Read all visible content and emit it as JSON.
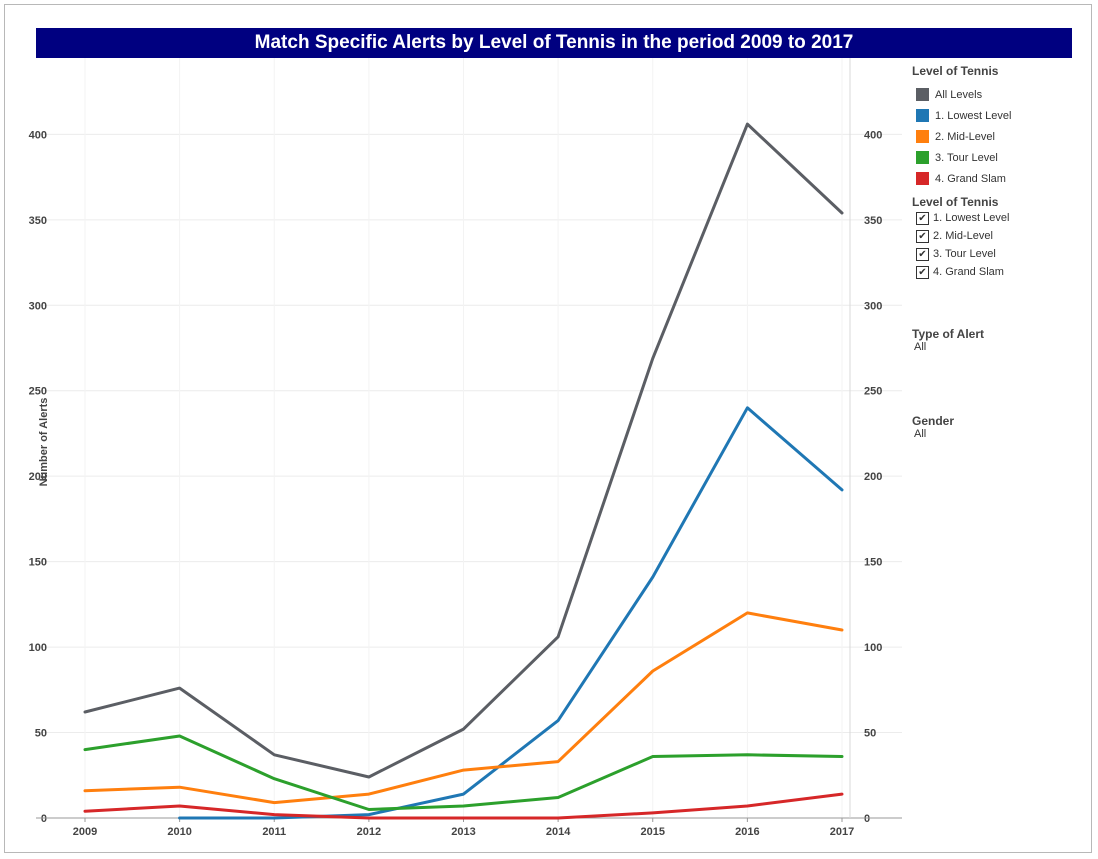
{
  "title": "Match Specific Alerts by Level of Tennis in the period 2009 to 2017",
  "legend": {
    "heading": "Level of Tennis",
    "items": [
      {
        "label": "All Levels",
        "color": "#5b5e64"
      },
      {
        "label": "1. Lowest Level",
        "color": "#1f77b4"
      },
      {
        "label": "2. Mid-Level",
        "color": "#ff7f0e"
      },
      {
        "label": "3. Tour Level",
        "color": "#2ca02c"
      },
      {
        "label": "4. Grand Slam",
        "color": "#d62728"
      }
    ]
  },
  "level_filter": {
    "heading": "Level of Tennis",
    "options": [
      {
        "label": "1. Lowest Level",
        "checked": true
      },
      {
        "label": "2. Mid-Level",
        "checked": true
      },
      {
        "label": "3. Tour Level",
        "checked": true
      },
      {
        "label": "4. Grand Slam",
        "checked": true
      }
    ]
  },
  "type_filter": {
    "heading": "Type of Alert",
    "value": "All"
  },
  "gender_filter": {
    "heading": "Gender",
    "value": "All"
  },
  "chart_data": {
    "type": "line",
    "title": "Match Specific Alerts by Level of Tennis in the period 2009 to 2017",
    "xlabel": "",
    "ylabel": "Number of Alerts",
    "x": [
      "2009",
      "2010",
      "2011",
      "2012",
      "2013",
      "2014",
      "2015",
      "2016",
      "2017"
    ],
    "ylim": [
      0,
      440
    ],
    "yticks": [
      0,
      50,
      100,
      150,
      200,
      250,
      300,
      350,
      400
    ],
    "grid": true,
    "legend_position": "right",
    "series": [
      {
        "name": "All Levels",
        "color": "#5b5e64",
        "values": [
          62,
          76,
          37,
          24,
          52,
          106,
          269,
          406,
          354
        ]
      },
      {
        "name": "1. Lowest Level",
        "color": "#1f77b4",
        "values": [
          null,
          0,
          0,
          2,
          14,
          57,
          141,
          240,
          192
        ]
      },
      {
        "name": "2. Mid-Level",
        "color": "#ff7f0e",
        "values": [
          16,
          18,
          9,
          14,
          28,
          33,
          86,
          120,
          110
        ]
      },
      {
        "name": "3. Tour Level",
        "color": "#2ca02c",
        "values": [
          40,
          48,
          23,
          5,
          7,
          12,
          36,
          37,
          36
        ]
      },
      {
        "name": "4. Grand Slam",
        "color": "#d62728",
        "values": [
          4,
          7,
          2,
          0,
          0,
          0,
          3,
          7,
          14
        ]
      }
    ]
  }
}
